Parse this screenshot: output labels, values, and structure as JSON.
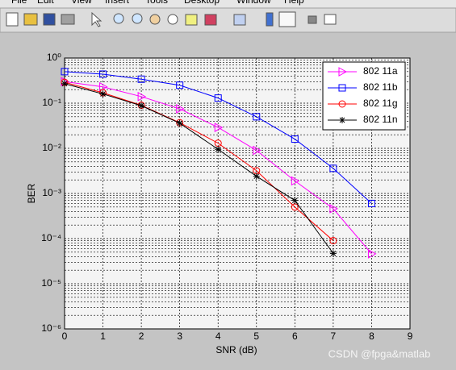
{
  "menu": [
    "File",
    "Edit",
    "View",
    "Insert",
    "Tools",
    "Desktop",
    "Window",
    "Help"
  ],
  "watermark": "CSDN @fpga&matlab",
  "chart_data": {
    "type": "line",
    "xlabel": "SNR (dB)",
    "ylabel": "BER",
    "x": [
      0,
      1,
      2,
      3,
      4,
      5,
      6,
      7,
      8
    ],
    "xlim": [
      0,
      9
    ],
    "xticks": [
      0,
      1,
      2,
      3,
      4,
      5,
      6,
      7,
      8,
      9
    ],
    "ylim": [
      1e-06,
      1
    ],
    "log_y": true,
    "grid": true,
    "minor_grid": true,
    "yticks": [
      {
        "value": 1e-06,
        "label": "10⁻⁶"
      },
      {
        "value": 1e-05,
        "label": "10⁻⁵"
      },
      {
        "value": 0.0001,
        "label": "10⁻⁴"
      },
      {
        "value": 0.001,
        "label": "10⁻³"
      },
      {
        "value": 0.01,
        "label": "10⁻²"
      },
      {
        "value": 0.1,
        "label": "10⁻¹"
      },
      {
        "value": 1,
        "label": "10⁰"
      }
    ],
    "legend": "upper right",
    "series": [
      {
        "name": "802 11a",
        "color": "#ff00ff",
        "marker": "triangle-right",
        "values": [
          0.3,
          0.23,
          0.14,
          0.075,
          0.029,
          0.009,
          0.0019,
          0.00046,
          4.6e-05
        ]
      },
      {
        "name": "802 11b",
        "color": "#0000ff",
        "marker": "square",
        "values": [
          0.5,
          0.44,
          0.34,
          0.25,
          0.13,
          0.05,
          0.016,
          0.0036,
          0.0006
        ]
      },
      {
        "name": "802 11g",
        "color": "#ff0000",
        "marker": "circle",
        "values": [
          0.29,
          0.17,
          0.09,
          0.037,
          0.013,
          0.0032,
          0.0005,
          9e-05,
          null
        ]
      },
      {
        "name": "802 11n",
        "color": "#000000",
        "marker": "asterisk",
        "values": [
          0.27,
          0.16,
          0.088,
          0.036,
          0.0095,
          0.0024,
          0.0007,
          4.7e-05,
          null
        ]
      }
    ]
  }
}
